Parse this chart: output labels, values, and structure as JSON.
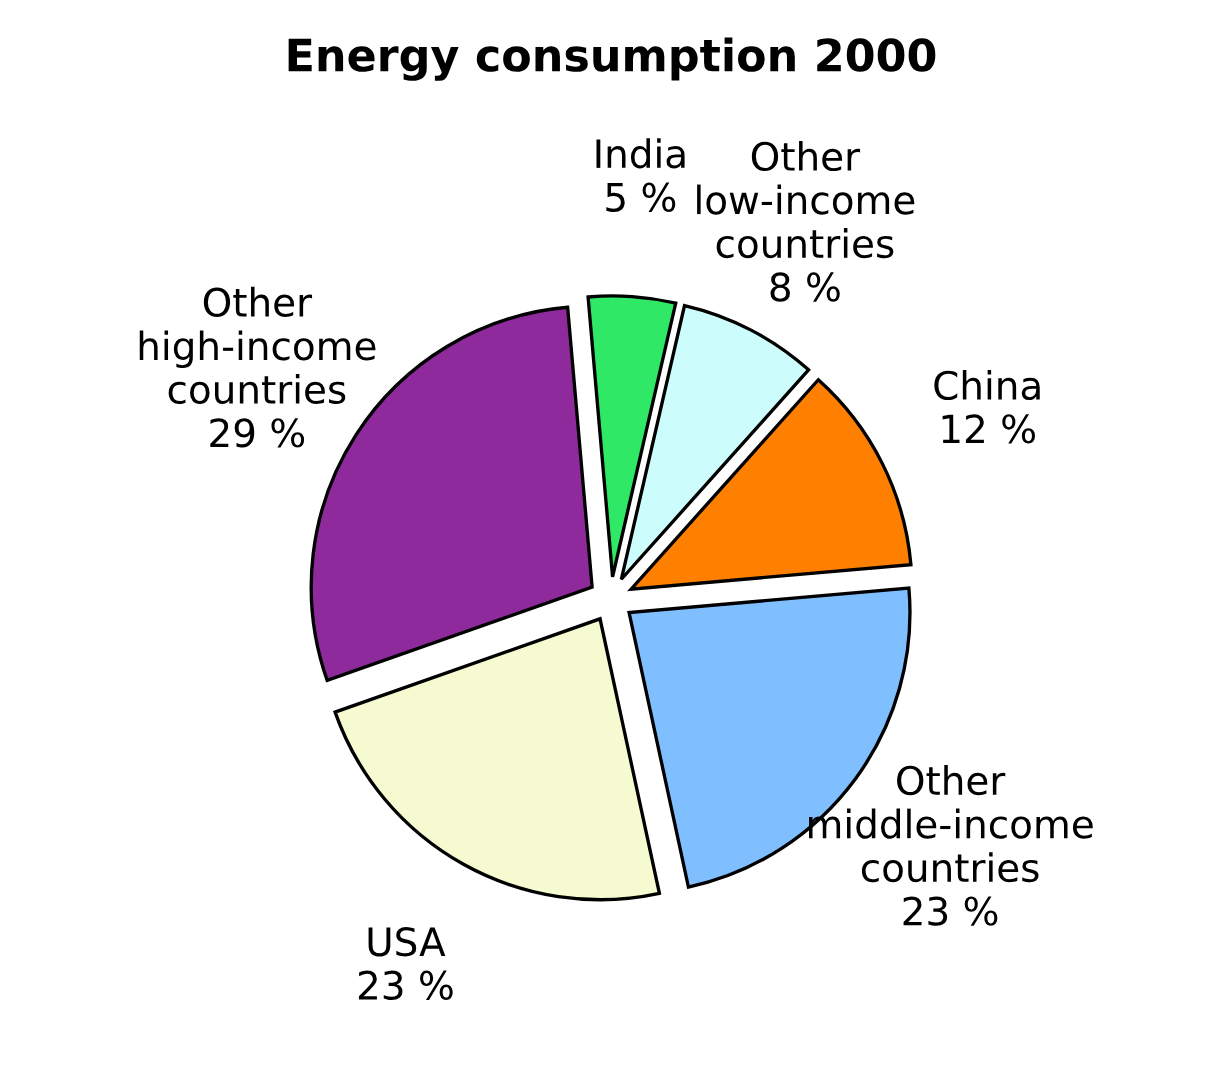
{
  "chart_data": {
    "type": "pie",
    "title": "Energy consumption 2000",
    "categories": [
      "India",
      "Other\nlow-income\ncountries",
      "China",
      "Other\nmiddle-income\ncountries",
      "USA",
      "Other\nhigh-income\ncountries"
    ],
    "values": [
      5,
      8,
      12,
      23,
      23,
      29
    ],
    "value_labels": [
      "5 %",
      "8 %",
      "12 %",
      "23 %",
      "23 %",
      "29 %"
    ],
    "colors": [
      "#2ee866",
      "#ccfcfc",
      "#ff8000",
      "#80bfff",
      "#f5fad0",
      "#8f2a9c"
    ],
    "legend": false
  }
}
